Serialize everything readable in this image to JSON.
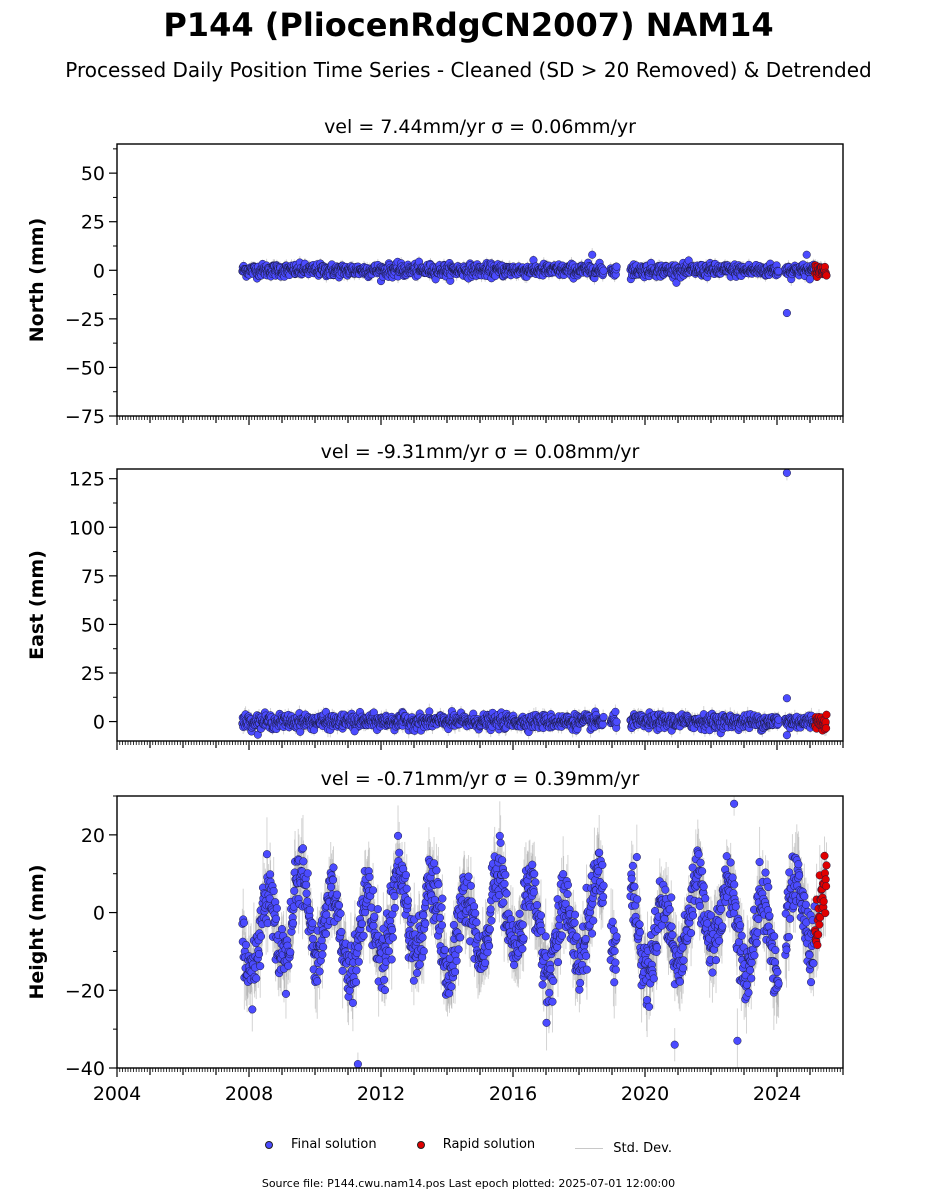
{
  "title": "P144 (PliocenRdgCN2007) NAM14",
  "subtitle": "Processed Daily Position Time Series - Cleaned (SD > 20 Removed) & Detrended",
  "legend": {
    "final": "Final solution",
    "rapid": "Rapid solution",
    "std": "Std. Dev."
  },
  "source_line": "Source file: P144.cwu.nam14.pos  Last epoch plotted: 2025-07-01 12:00:00",
  "colors": {
    "final": "#4b4bff",
    "rapid": "#e00000",
    "std": "#a0a0a0"
  },
  "chart_data": [
    {
      "type": "scatter",
      "title": "vel = 7.44mm/yr   σ = 0.06mm/yr",
      "ylabel": "North (mm)",
      "xlim": [
        2004,
        2026
      ],
      "ylim": [
        -75,
        65
      ],
      "yticks": [
        50,
        25,
        0,
        -25,
        -50,
        -75
      ],
      "ytick_labels": [
        "50",
        "25",
        "0",
        "−25",
        "−50",
        "−75"
      ],
      "data_start": 2007.8,
      "data_end": 2025.5,
      "rapid_start": 2025.15,
      "gaps": [
        [
          2018.75,
          2018.95
        ],
        [
          2019.15,
          2019.55
        ],
        [
          2024.05,
          2024.25
        ]
      ],
      "noise_amp": 1.6,
      "sd_amp": 2.5,
      "seasonal_amp": 0,
      "outliers": [
        {
          "x": 2024.3,
          "y": -22
        },
        {
          "x": 2018.4,
          "y": 8
        },
        {
          "x": 2024.9,
          "y": 8
        }
      ]
    },
    {
      "type": "scatter",
      "title": "vel = -9.31mm/yr   σ = 0.08mm/yr",
      "ylabel": "East (mm)",
      "xlim": [
        2004,
        2026
      ],
      "ylim": [
        -10,
        130
      ],
      "yticks": [
        125,
        100,
        75,
        50,
        25,
        0
      ],
      "ytick_labels": [
        "125",
        "100",
        "75",
        "50",
        "25",
        "0"
      ],
      "data_start": 2007.8,
      "data_end": 2025.5,
      "rapid_start": 2025.15,
      "gaps": [
        [
          2018.75,
          2018.95
        ],
        [
          2019.15,
          2019.55
        ],
        [
          2024.05,
          2024.25
        ]
      ],
      "noise_amp": 1.8,
      "sd_amp": 3,
      "seasonal_amp": 0,
      "outliers": [
        {
          "x": 2024.3,
          "y": 128
        },
        {
          "x": 2024.3,
          "y": 12
        },
        {
          "x": 2024.3,
          "y": -7
        },
        {
          "x": 2011.2,
          "y": -5
        }
      ]
    },
    {
      "type": "scatter",
      "title": "vel = -0.71mm/yr   σ = 0.39mm/yr",
      "ylabel": "Height (mm)",
      "xlim": [
        2004,
        2026
      ],
      "ylim": [
        -40,
        30
      ],
      "yticks": [
        20,
        0,
        -20,
        -40
      ],
      "ytick_labels": [
        "20",
        "0",
        "−20",
        "−40"
      ],
      "xticks": [
        2004,
        2008,
        2012,
        2016,
        2020,
        2024
      ],
      "xtick_labels": [
        "2004",
        "2008",
        "2012",
        "2016",
        "2020",
        "2024"
      ],
      "data_start": 2007.8,
      "data_end": 2025.5,
      "rapid_start": 2025.15,
      "gaps": [
        [
          2018.75,
          2018.95
        ],
        [
          2019.15,
          2019.55
        ],
        [
          2024.05,
          2024.25
        ]
      ],
      "noise_amp": 4,
      "sd_amp": 7,
      "seasonal_amp": 10,
      "outliers": [
        {
          "x": 2011.3,
          "y": -39
        },
        {
          "x": 2020.9,
          "y": -34
        },
        {
          "x": 2022.8,
          "y": -33
        },
        {
          "x": 2022.7,
          "y": 28
        }
      ]
    }
  ]
}
